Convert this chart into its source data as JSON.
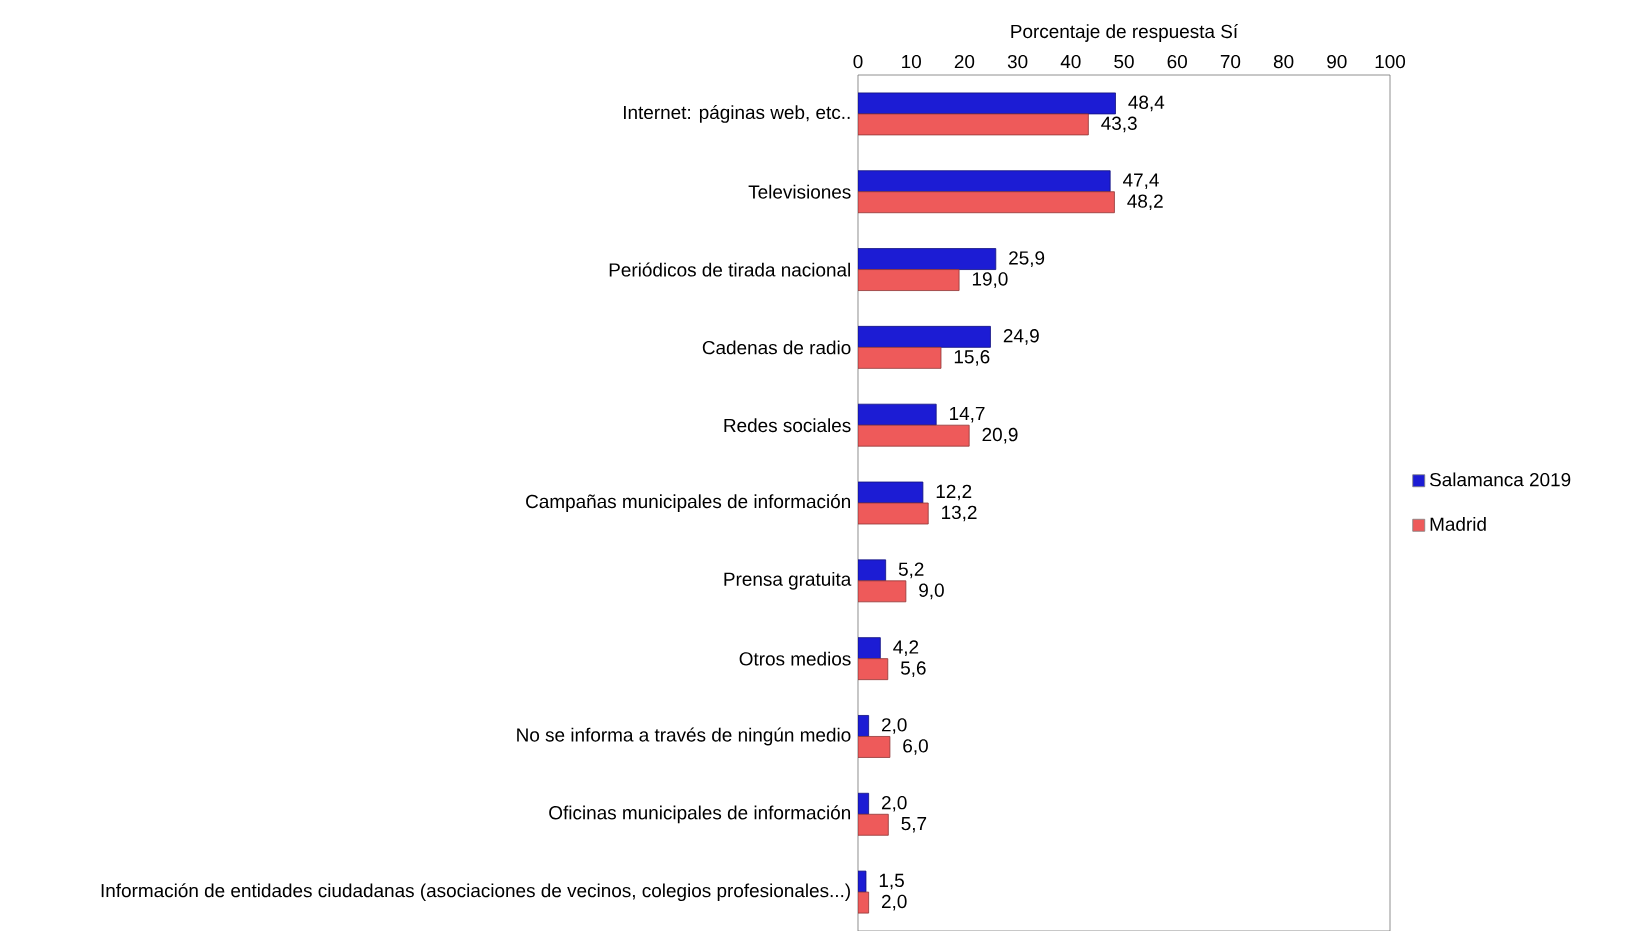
{
  "chart_data": {
    "type": "bar",
    "orientation": "horizontal",
    "xlabel": "Porcentaje de respuesta Sí",
    "categories": [
      "Internet: páginas web, etc..",
      "Televisiones",
      "Periódicos de tirada nacional",
      "Cadenas de radio",
      "Redes sociales",
      "Campañas municipales de información",
      "Prensa gratuita",
      "Otros medios",
      "No se informa a través de ningún medio",
      "Oficinas municipales de información",
      "Información de entidades ciudadanas (asociaciones de vecinos, colegios profesionales...)"
    ],
    "series": [
      {
        "name": "Salamanca 2019",
        "color": "#1c1cd4",
        "values": [
          48.4,
          47.4,
          25.9,
          24.9,
          14.7,
          12.2,
          5.2,
          4.2,
          2.0,
          2.0,
          1.5
        ],
        "value_labels": [
          "48,4",
          "47,4",
          "25,9",
          "24,9",
          "14,7",
          "12,2",
          "5,2",
          "4,2",
          "2,0",
          "2,0",
          "1,5"
        ]
      },
      {
        "name": "Madrid",
        "color": "#ee5a5a",
        "values": [
          43.3,
          48.2,
          19.0,
          15.6,
          20.9,
          13.2,
          9.0,
          5.6,
          6.0,
          5.7,
          2.0
        ],
        "value_labels": [
          "43,3",
          "48,2",
          "19,0",
          "15,6",
          "20,9",
          "13,2",
          "9,0",
          "5,6",
          "6,0",
          "5,7",
          "2,0"
        ]
      }
    ],
    "xlim": [
      0,
      100
    ],
    "xticks": [
      0,
      10,
      20,
      30,
      40,
      50,
      60,
      70,
      80,
      90,
      100
    ],
    "grid": false,
    "legend": "right"
  }
}
